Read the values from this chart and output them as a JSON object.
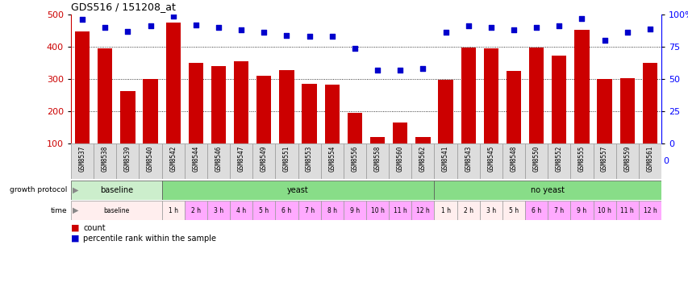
{
  "title": "GDS516 / 151208_at",
  "samples": [
    "GSM8537",
    "GSM8538",
    "GSM8539",
    "GSM8540",
    "GSM8542",
    "GSM8544",
    "GSM8546",
    "GSM8547",
    "GSM8549",
    "GSM8551",
    "GSM8553",
    "GSM8554",
    "GSM8556",
    "GSM8558",
    "GSM8560",
    "GSM8562",
    "GSM8541",
    "GSM8543",
    "GSM8545",
    "GSM8548",
    "GSM8550",
    "GSM8552",
    "GSM8555",
    "GSM8557",
    "GSM8559",
    "GSM8561"
  ],
  "counts": [
    447,
    394,
    263,
    301,
    476,
    351,
    339,
    355,
    309,
    327,
    286,
    282,
    195,
    119,
    165,
    120,
    298,
    397,
    394,
    326,
    397,
    373,
    453,
    300,
    302,
    349
  ],
  "percentiles": [
    96,
    90,
    87,
    91,
    99,
    92,
    90,
    88,
    86,
    84,
    83,
    83,
    74,
    57,
    57,
    58,
    86,
    91,
    90,
    88,
    90,
    91,
    97,
    80,
    86,
    89
  ],
  "bar_color": "#cc0000",
  "dot_color": "#0000cc",
  "ylim_left": [
    100,
    500
  ],
  "ylim_right": [
    0,
    100
  ],
  "yticks_left": [
    100,
    200,
    300,
    400,
    500
  ],
  "yticks_right": [
    0,
    25,
    50,
    75,
    100
  ],
  "yticklabels_right": [
    "0",
    "25",
    "50",
    "75",
    "100%"
  ],
  "time_spans": [
    {
      "label": "baseline",
      "start": 0,
      "end": 4,
      "color": "#ffeeee"
    },
    {
      "label": "1 h",
      "start": 4,
      "end": 5,
      "color": "#ffeeee"
    },
    {
      "label": "2 h",
      "start": 5,
      "end": 6,
      "color": "#ffaaff"
    },
    {
      "label": "3 h",
      "start": 6,
      "end": 7,
      "color": "#ffaaff"
    },
    {
      "label": "4 h",
      "start": 7,
      "end": 8,
      "color": "#ffaaff"
    },
    {
      "label": "5 h",
      "start": 8,
      "end": 9,
      "color": "#ffaaff"
    },
    {
      "label": "6 h",
      "start": 9,
      "end": 10,
      "color": "#ffaaff"
    },
    {
      "label": "7 h",
      "start": 10,
      "end": 11,
      "color": "#ffaaff"
    },
    {
      "label": "8 h",
      "start": 11,
      "end": 12,
      "color": "#ffaaff"
    },
    {
      "label": "9 h",
      "start": 12,
      "end": 13,
      "color": "#ffaaff"
    },
    {
      "label": "10 h",
      "start": 13,
      "end": 14,
      "color": "#ffaaff"
    },
    {
      "label": "11 h",
      "start": 14,
      "end": 15,
      "color": "#ffaaff"
    },
    {
      "label": "12 h",
      "start": 15,
      "end": 16,
      "color": "#ffaaff"
    },
    {
      "label": "1 h",
      "start": 16,
      "end": 17,
      "color": "#ffeeee"
    },
    {
      "label": "2 h",
      "start": 17,
      "end": 18,
      "color": "#ffeeee"
    },
    {
      "label": "3 h",
      "start": 18,
      "end": 19,
      "color": "#ffeeee"
    },
    {
      "label": "5 h",
      "start": 19,
      "end": 20,
      "color": "#ffeeee"
    },
    {
      "label": "6 h",
      "start": 20,
      "end": 21,
      "color": "#ffaaff"
    },
    {
      "label": "7 h",
      "start": 21,
      "end": 22,
      "color": "#ffaaff"
    },
    {
      "label": "9 h",
      "start": 22,
      "end": 23,
      "color": "#ffaaff"
    },
    {
      "label": "10 h",
      "start": 23,
      "end": 24,
      "color": "#ffaaff"
    },
    {
      "label": "11 h",
      "start": 24,
      "end": 25,
      "color": "#ffaaff"
    },
    {
      "label": "12 h",
      "start": 25,
      "end": 26,
      "color": "#ffaaff"
    }
  ],
  "protocol_spans": [
    {
      "label": "baseline",
      "start": 0,
      "end": 4,
      "color": "#cceecc"
    },
    {
      "label": "yeast",
      "start": 4,
      "end": 16,
      "color": "#88dd88"
    },
    {
      "label": "no yeast",
      "start": 16,
      "end": 26,
      "color": "#88dd88"
    }
  ],
  "bar_color_red": "#cc0000",
  "background_color": "#ffffff",
  "cell_bg": "#dddddd",
  "legend_count_color": "#cc0000",
  "legend_dot_color": "#0000cc"
}
